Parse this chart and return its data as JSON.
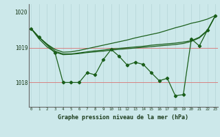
{
  "xlabel": "Graphe pression niveau de la mer (hPa)",
  "background_color": "#cce8ea",
  "plot_bg_color": "#cce8ea",
  "line_color": "#1a5e1a",
  "grid_color_v": "#b8d8da",
  "grid_color_h": "#d88080",
  "hours": [
    0,
    1,
    2,
    3,
    4,
    5,
    6,
    7,
    8,
    9,
    10,
    11,
    12,
    13,
    14,
    15,
    16,
    17,
    18,
    19,
    20,
    21,
    22,
    23
  ],
  "series_detailed": [
    1019.55,
    1019.3,
    null,
    1018.85,
    1018.0,
    1018.0,
    1018.0,
    1018.28,
    1018.22,
    1018.65,
    1018.95,
    1018.75,
    1018.5,
    1018.58,
    1018.52,
    1018.28,
    1018.05,
    1018.12,
    1017.62,
    1017.65,
    1019.25,
    1019.05,
    1019.5,
    1019.92
  ],
  "series_smooth1": [
    1019.55,
    1019.3,
    1019.1,
    1018.95,
    1018.87,
    1018.88,
    1018.92,
    1018.97,
    1019.02,
    1019.07,
    1019.12,
    1019.17,
    1019.22,
    1019.28,
    1019.33,
    1019.38,
    1019.43,
    1019.5,
    1019.57,
    1019.63,
    1019.7,
    1019.75,
    1019.82,
    1019.92
  ],
  "series_smooth2": [
    1019.55,
    1019.3,
    1019.1,
    1018.9,
    1018.82,
    1018.82,
    1018.85,
    1018.88,
    1018.91,
    1018.93,
    1018.96,
    1018.98,
    1019.0,
    1019.02,
    1019.04,
    1019.07,
    1019.09,
    1019.11,
    1019.13,
    1019.16,
    1019.2,
    1019.3,
    1019.5,
    1019.92
  ],
  "series_smooth3": [
    1019.55,
    1019.25,
    1019.02,
    1018.87,
    1018.8,
    1018.81,
    1018.83,
    1018.86,
    1018.88,
    1018.9,
    1018.93,
    1018.95,
    1018.97,
    1018.99,
    1019.01,
    1019.03,
    1019.05,
    1019.07,
    1019.09,
    1019.12,
    1019.18,
    1019.28,
    1019.48,
    1019.92
  ],
  "ylim_min": 1017.3,
  "ylim_max": 1020.25,
  "yticks": [
    1018.0,
    1019.0
  ],
  "ytick_labels": [
    "1018",
    "1019"
  ],
  "top_label": "1020"
}
